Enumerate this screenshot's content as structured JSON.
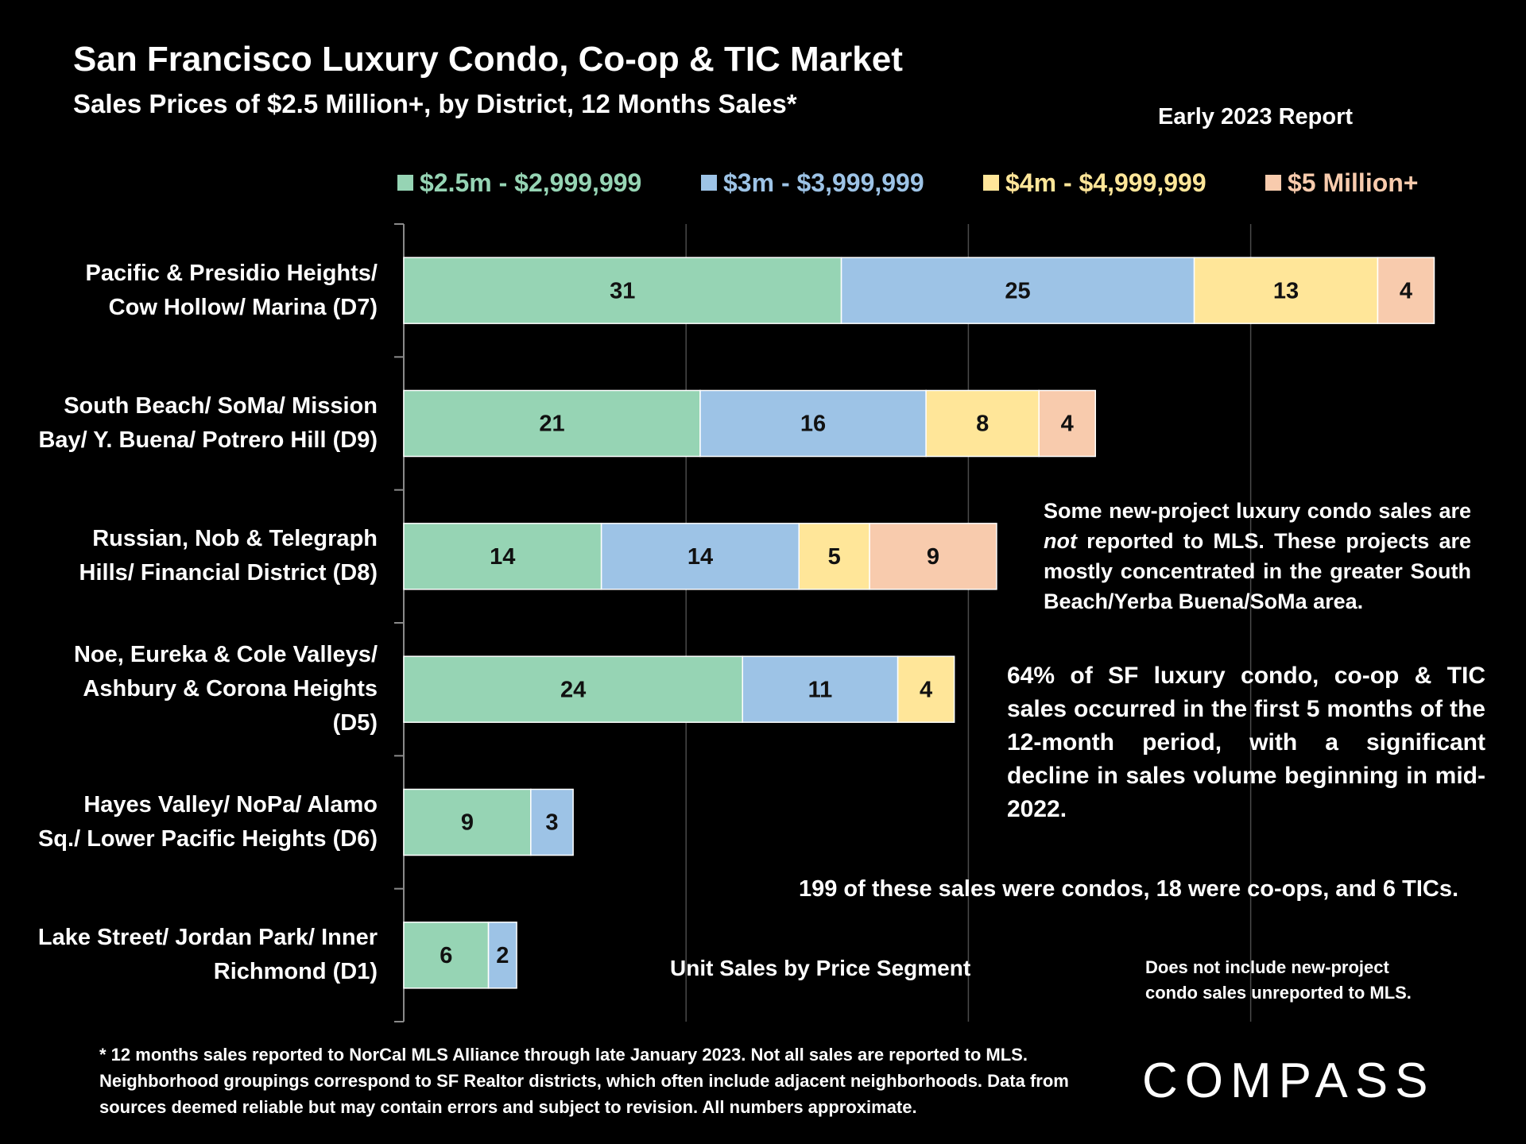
{
  "chart_data": {
    "type": "stacked_barh",
    "title": "San Francisco Luxury Condo, Co-op & TIC Market",
    "subtitle": "Sales Prices of $2.5 Million+, by District, 12 Months Sales*",
    "report": "Early 2023 Report",
    "categories": [
      "Pacific & Presidio Heights/ Cow Hollow/ Marina (D7)",
      "South Beach/ SoMa/ Mission Bay/ Y. Buena/ Potrero Hill (D9)",
      "Russian, Nob & Telegraph Hills/ Financial District (D8)",
      "Noe, Eureka & Cole Valleys/ Ashbury & Corona Heights (D5)",
      "Hayes Valley/ NoPa/ Alamo Sq./ Lower Pacific Heights (D6)",
      "Lake Street/ Jordan Park/ Inner Richmond (D1)"
    ],
    "series": [
      {
        "name": "$2.5m - $2,999,999",
        "color": "#96d4b4",
        "values": [
          31,
          21,
          14,
          24,
          9,
          6
        ]
      },
      {
        "name": "$3m - $3,999,999",
        "color": "#9dc3e6",
        "values": [
          25,
          16,
          14,
          11,
          3,
          2
        ]
      },
      {
        "name": "$4m - $4,999,999",
        "color": "#ffe699",
        "values": [
          13,
          8,
          5,
          4,
          null,
          null
        ]
      },
      {
        "name": "$5 Million+",
        "color": "#f8cbad",
        "values": [
          4,
          4,
          9,
          null,
          null,
          null
        ]
      }
    ],
    "xlim": [
      0,
      75
    ],
    "xticks": [
      0,
      20,
      40,
      60
    ],
    "grid": true,
    "x_label": "Unit Sales by Price Segment",
    "note_mls": [
      "Some new-project luxury condo sales are ",
      "not",
      " reported to MLS. These projects are mostly concentrated in the greater South Beach/Yerba Buena/SoMa area."
    ],
    "note_share": "64% of SF luxury condo, co-op & TIC sales occurred in the first 5 months of the 12-month period, with a significant decline in sales volume beginning in mid-2022.",
    "note_types": "199 of these sales were condos, 18 were co-ops, and 6 TICs.",
    "note_exclude": "Does not include new-project condo sales unreported to MLS.",
    "footnote": "* 12 months sales reported to NorCal MLS Alliance through late January 2023. Not all sales are reported to MLS. Neighborhood groupings correspond to SF Realtor districts, which often include adjacent neighborhoods. Data from sources deemed reliable but may contain errors and subject to revision. All numbers approximate.",
    "brand": "COMPASS"
  }
}
